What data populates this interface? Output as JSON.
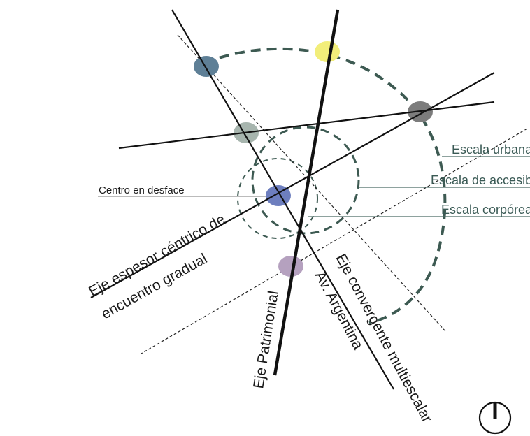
{
  "labels": {
    "centro_en_desface": "Centro en desface",
    "escala_urbana": "Escala urbana",
    "escala_accesibilidad": "Escala de accesibilidad",
    "escala_corporea": "Escala corpórea",
    "eje_espesor_line1": "Eje espesor céntrico de",
    "eje_espesor_line2": "encuentro gradual",
    "eje_patrimonial": "Eje Patrimonial",
    "av_argentina": "Av. Argentina",
    "eje_convergente": "Eje convergente multiescalar"
  },
  "colors": {
    "dash_circle": "#3d5a52",
    "leader_line": "#4b6b65",
    "node_steel_blue": "#5e7f96",
    "node_yellow": "#f2ee7a",
    "node_dark_gray": "#7c7c7c",
    "node_sage": "#a7b5ae",
    "node_blue": "#6d7ebe",
    "node_lilac": "#b5a1bf"
  },
  "icons": {
    "north": "north-compass-icon"
  }
}
